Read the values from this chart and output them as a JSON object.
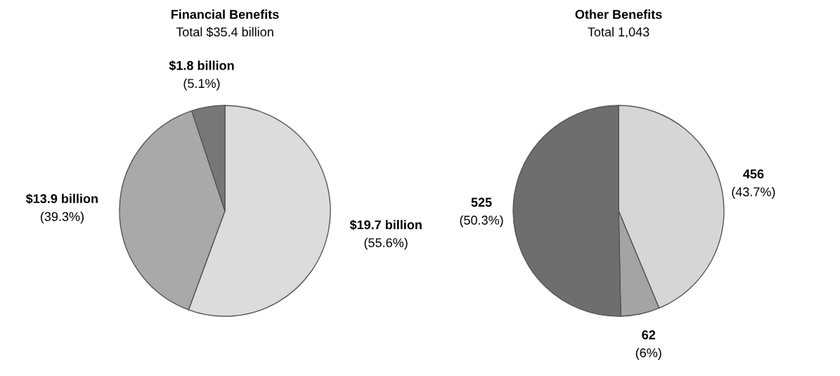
{
  "chart_data": [
    {
      "type": "pie",
      "title": "Financial Benefits",
      "subtitle": "Total $35.4 billion",
      "categories": [
        null,
        null,
        null
      ],
      "values": [
        55.6,
        39.3,
        5.1
      ],
      "colors": [
        "#dcdcdc",
        "#a9a9a9",
        "#777777"
      ],
      "value_labels": [
        "$19.7 billion\n(55.6%)",
        "$13.9 billion\n(39.3%)",
        "$1.8 billion\n(5.1%)"
      ]
    },
    {
      "type": "pie",
      "title": "Other Benefits",
      "subtitle": "Total 1,043",
      "categories": [
        null,
        null,
        null
      ],
      "values": [
        456,
        62,
        525
      ],
      "colors": [
        "#d6d6d6",
        "#a4a4a4",
        "#6e6e6e"
      ],
      "value_labels": [
        "456\n(43.7%)",
        "62\n(6%)",
        "525\n(50.3%)"
      ]
    }
  ]
}
